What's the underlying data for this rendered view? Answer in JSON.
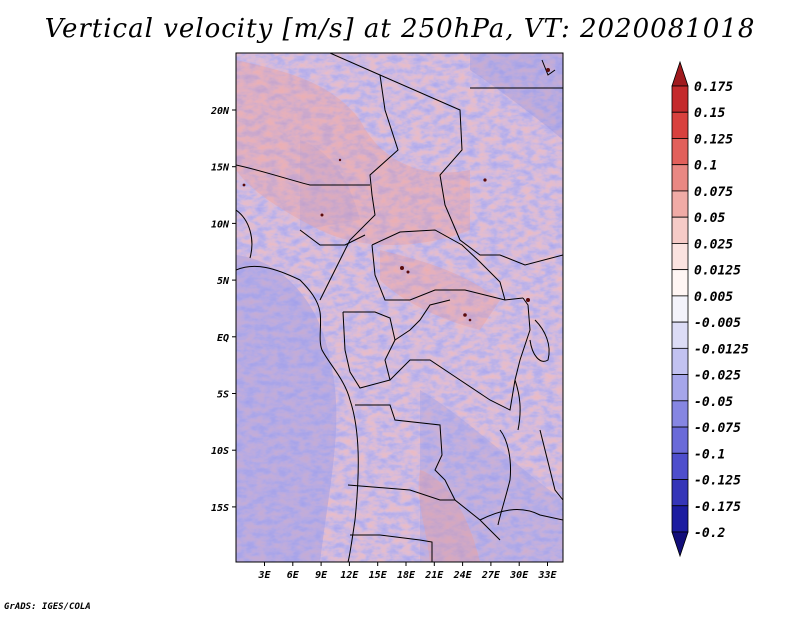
{
  "title": "Vertical velocity [m/s] at 250hPa, VT: 2020081018",
  "footer": "GrADS: IGES/COLA",
  "map": {
    "lat_labels": [
      "20N",
      "15N",
      "10N",
      "5N",
      "EQ",
      "5S",
      "10S",
      "15S"
    ],
    "lon_labels": [
      "3E",
      "6E",
      "9E",
      "12E",
      "15E",
      "18E",
      "21E",
      "24E",
      "27E",
      "30E",
      "33E"
    ],
    "colorbar": {
      "labels": [
        "0.175",
        "0.15",
        "0.125",
        "0.1",
        "0.075",
        "0.05",
        "0.025",
        "0.0125",
        "0.005",
        "-0.005",
        "-0.0125",
        "-0.025",
        "-0.05",
        "-0.075",
        "-0.1",
        "-0.125",
        "-0.175",
        "-0.2"
      ],
      "colors": [
        "#a01a1e",
        "#c42a2c",
        "#d8413e",
        "#e2605b",
        "#e98883",
        "#f0aba6",
        "#f6cbc7",
        "#fbe3e0",
        "#fff6f4",
        "#f3f3fb",
        "#dcdcf6",
        "#c2c2f0",
        "#a6a6ea",
        "#8686e2",
        "#6a6ad8",
        "#4e4ecc",
        "#3535b8",
        "#1c1ca0",
        "#120e7a"
      ]
    }
  }
}
